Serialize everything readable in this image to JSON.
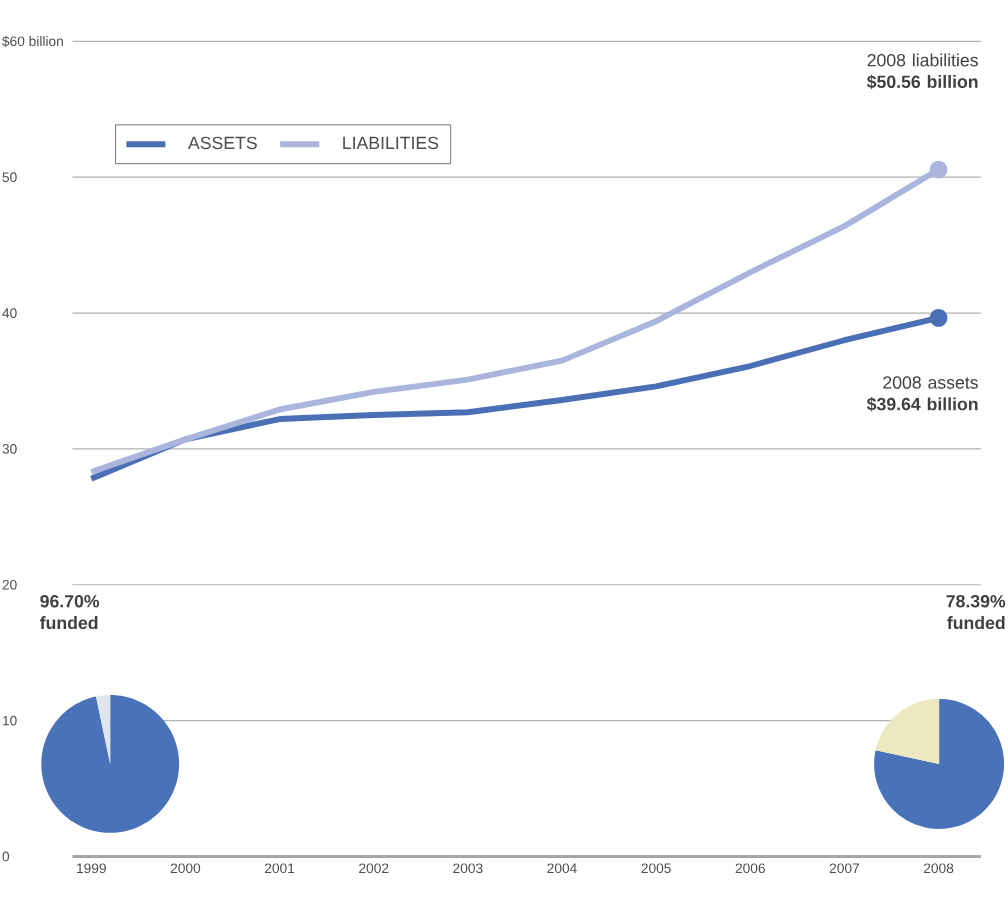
{
  "chart_data": [
    {
      "type": "line",
      "categories": [
        "1999",
        "2000",
        "2001",
        "2002",
        "2003",
        "2004",
        "2005",
        "2006",
        "2007",
        "2008"
      ],
      "series": [
        {
          "name": "ASSETS",
          "color": "#4a6fb5",
          "values": [
            27.8,
            30.7,
            32.2,
            32.5,
            32.7,
            33.6,
            34.6,
            36.1,
            38.0,
            39.64
          ]
        },
        {
          "name": "LIABILITIES",
          "color": "#a9b5dc",
          "values": [
            28.3,
            30.7,
            32.9,
            34.2,
            35.1,
            36.5,
            39.4,
            43.0,
            46.4,
            50.56
          ]
        }
      ],
      "ylim": [
        0,
        60
      ],
      "yticks": [
        0,
        10,
        20,
        30,
        40,
        {
          "value": 50,
          "label": "50"
        },
        {
          "value": 60,
          "label": "$60 billion"
        }
      ],
      "grid": "y",
      "legend": "top left",
      "line_style": "solid",
      "annotations": [
        "2008 liabilities **$50.56 billion**",
        "2008 assets **$39.64 billion**"
      ]
    },
    {
      "type": "pie",
      "title": "96.70% funded",
      "categories": [
        null,
        null
      ],
      "values": [
        96.7,
        3.3
      ],
      "colors": [
        "#4a72b8",
        "#dfe6f0"
      ]
    },
    {
      "type": "pie",
      "title": "78.39% funded",
      "categories": [
        null,
        null
      ],
      "values": [
        78.39,
        21.61
      ],
      "colors": [
        "#4a72b8",
        "#ece8bf"
      ]
    }
  ]
}
